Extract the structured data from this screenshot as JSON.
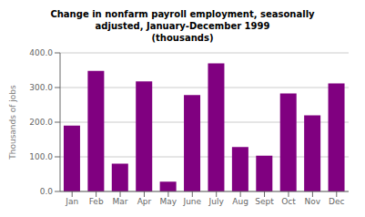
{
  "chart_data": {
    "type": "bar",
    "title": "Change in nonfarm payroll employment, seasonally\nadjusted, January-December 1999\n(thousands)",
    "ylabel": "Thousands of jobs",
    "categories": [
      "Jan",
      "Feb",
      "Mar",
      "Apr",
      "May",
      "June",
      "July",
      "Aug",
      "Sept",
      "Oct",
      "Nov",
      "Dec"
    ],
    "values": [
      190,
      348,
      80,
      318,
      28,
      278,
      370,
      128,
      103,
      283,
      220,
      312
    ],
    "color": "#800080",
    "ylim": [
      0,
      400
    ],
    "yticks": [
      {
        "value": 0,
        "label": "0.0"
      },
      {
        "value": 100,
        "label": "100.0"
      },
      {
        "value": 200,
        "label": "200.0"
      },
      {
        "value": 300,
        "label": "300.0"
      },
      {
        "value": 400,
        "label": "400.0"
      }
    ],
    "grid": true
  }
}
